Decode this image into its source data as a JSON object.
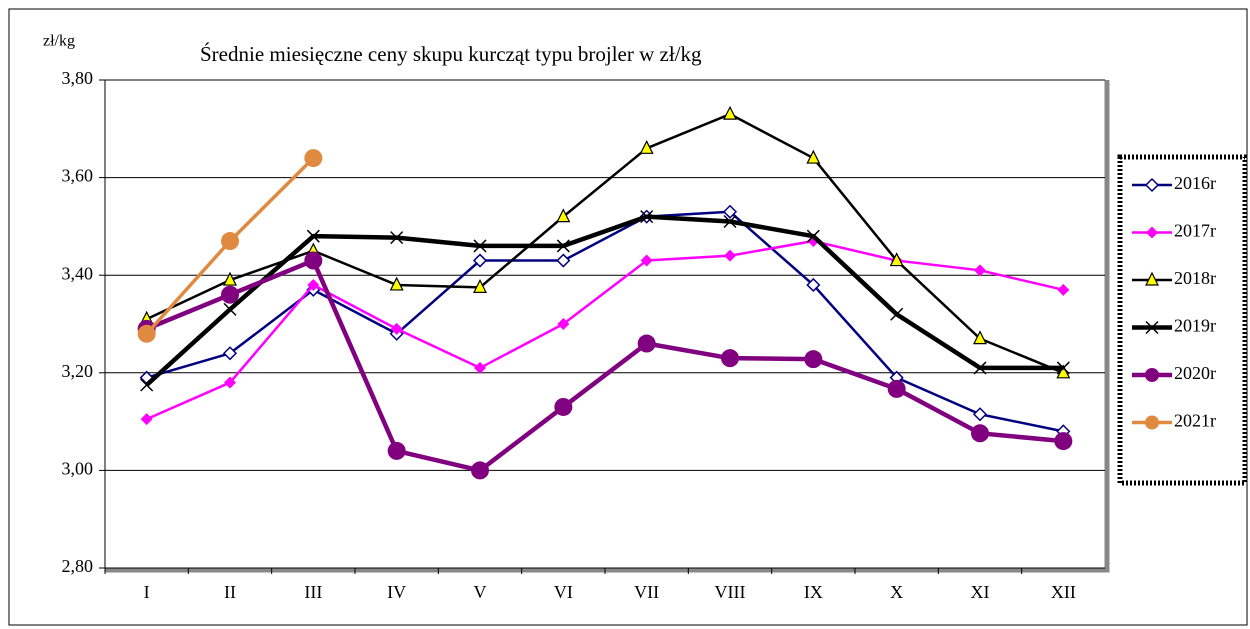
{
  "chart_data": {
    "type": "line",
    "title": "Średnie miesięczne ceny skupu kurcząt typu brojler w zł/kg",
    "y_label": "zł/kg",
    "categories": [
      "I",
      "II",
      "III",
      "IV",
      "V",
      "VI",
      "VII",
      "VIII",
      "IX",
      "X",
      "XI",
      "XII"
    ],
    "ylim": [
      2.8,
      3.8
    ],
    "yticks": [
      {
        "value": 2.8,
        "label": "2,80"
      },
      {
        "value": 3.0,
        "label": "3,00"
      },
      {
        "value": 3.2,
        "label": "3,20"
      },
      {
        "value": 3.4,
        "label": "3,40"
      },
      {
        "value": 3.6,
        "label": "3,60"
      },
      {
        "value": 3.8,
        "label": "3,80"
      }
    ],
    "grid": true,
    "legend": "right",
    "series": [
      {
        "name": "2016r",
        "color": "#000080",
        "marker": "diamond-open",
        "line_width": 2.5,
        "values": [
          3.19,
          3.24,
          3.37,
          3.28,
          3.43,
          3.43,
          3.52,
          3.53,
          3.38,
          3.19,
          3.115,
          3.08
        ]
      },
      {
        "name": "2017r",
        "color": "#ff00ff",
        "marker": "diamond",
        "line_width": 2.5,
        "values": [
          3.105,
          3.18,
          3.38,
          3.29,
          3.21,
          3.3,
          3.43,
          3.44,
          3.47,
          3.43,
          3.41,
          3.37
        ]
      },
      {
        "name": "2018r",
        "color": "#000000",
        "marker": "triangle",
        "line_width": 2.5,
        "values": [
          3.31,
          3.39,
          3.45,
          3.38,
          3.375,
          3.52,
          3.66,
          3.73,
          3.64,
          3.43,
          3.27,
          3.2
        ]
      },
      {
        "name": "2019r",
        "color": "#000000",
        "marker": "x",
        "line_width": 4.5,
        "values": [
          3.175,
          3.33,
          3.48,
          3.477,
          3.46,
          3.46,
          3.52,
          3.51,
          3.48,
          3.32,
          3.21,
          3.21
        ]
      },
      {
        "name": "2020r",
        "color": "#800080",
        "marker": "circle",
        "line_width": 4.5,
        "values": [
          3.29,
          3.36,
          3.43,
          3.04,
          3.0,
          3.13,
          3.26,
          3.23,
          3.228,
          3.167,
          3.076,
          3.06
        ]
      },
      {
        "name": "2021r",
        "color": "#e08a40",
        "marker": "circle",
        "line_width": 3.5,
        "values": [
          3.28,
          3.47,
          3.64,
          null,
          null,
          null,
          null,
          null,
          null,
          null,
          null,
          null
        ]
      }
    ]
  }
}
